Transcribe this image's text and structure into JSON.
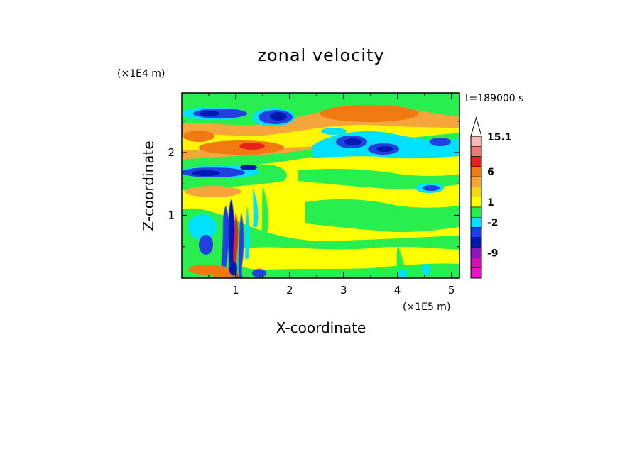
{
  "chart_data": {
    "type": "heatmap",
    "title": "zonal velocity",
    "xlabel": "X-coordinate",
    "ylabel": "Z-coordinate",
    "x_scale_note": "(×1E5 m)",
    "y_scale_note": "(×1E4 m)",
    "time_label": "t=189000 s",
    "xlim": [
      0,
      5.15
    ],
    "ylim": [
      0,
      2.95
    ],
    "x_ticks": [
      "1",
      "2",
      "3",
      "4",
      "5"
    ],
    "y_ticks": [
      "1",
      "2"
    ],
    "colorbar": {
      "labels": [
        {
          "text": "15.1",
          "value": 15.1
        },
        {
          "text": "6",
          "value": 6
        },
        {
          "text": "1",
          "value": 1
        },
        {
          "text": "-2",
          "value": -2
        },
        {
          "text": "-9",
          "value": -9
        }
      ],
      "colors_top_to_bottom": [
        "#f6b7b7",
        "#f07a74",
        "#e8201a",
        "#f07a10",
        "#f6a53a",
        "#f0d818",
        "#ffff00",
        "#28ee50",
        "#00e0ff",
        "#2040e0",
        "#0018b0",
        "#9018b8",
        "#d010b0",
        "#f010c8"
      ]
    },
    "field_description": "contour-filled zonal velocity field",
    "colors": {
      "background_level": "#ffff00",
      "green": "#28ee50",
      "cyan": "#00e0ff",
      "blue": "#0018b0",
      "orange": "#f6a53a",
      "red": "#e8201a"
    }
  }
}
